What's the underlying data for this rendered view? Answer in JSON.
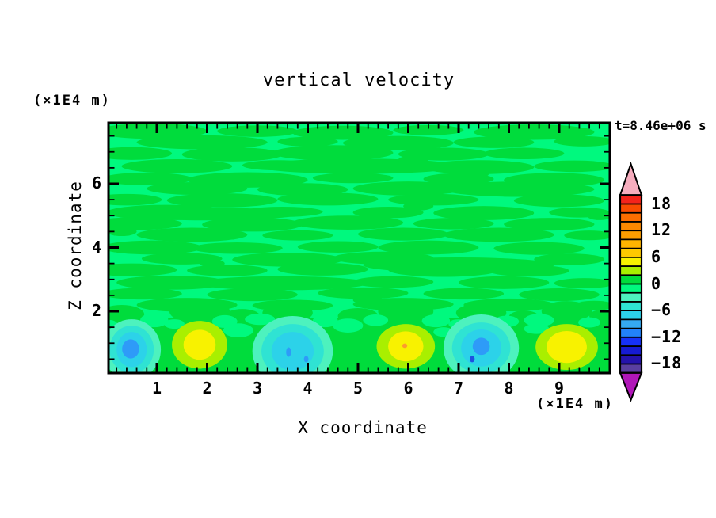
{
  "title": "vertical velocity",
  "timestamp": "t=8.46e+06 s",
  "axes": {
    "x": {
      "label": "X coordinate",
      "unit": "(×1E4 m)",
      "range": [
        0,
        10
      ],
      "major_ticks": [
        1,
        2,
        3,
        4,
        5,
        6,
        7,
        8,
        9
      ],
      "minor_step": 0.2
    },
    "z": {
      "label": "Z coordinate",
      "unit": "(×1E4 m)",
      "range": [
        0,
        7.9
      ],
      "major_ticks": [
        2,
        4,
        6
      ],
      "minor_step": 0.5
    }
  },
  "colorbar": {
    "labels": [
      "18",
      "12",
      "6",
      "0",
      "−6",
      "−12",
      "−18"
    ],
    "label_boundary_index": [
      1,
      4,
      7,
      10,
      13,
      16,
      19
    ],
    "top_value": 20,
    "segment_span": 2,
    "segments": [
      "#F4231B",
      "#F94B00",
      "#FB6E00",
      "#FC8800",
      "#FD9E00",
      "#FEB400",
      "#FEC900",
      "#F8F200",
      "#A9EF00",
      "#00DC3C",
      "#00F97E",
      "#4DF2BE",
      "#2FE3D3",
      "#2CD2E9",
      "#35A9F1",
      "#2282FA",
      "#1631F8",
      "#161BD2",
      "#2412AC",
      "#5A3FA0"
    ],
    "over_arrow_color": "#F6ADBE",
    "under_arrow_color": "#B017B8"
  },
  "chart_data": {
    "type": "heatmap",
    "title": "vertical velocity",
    "xlabel": "X coordinate (×1E4 m)",
    "ylabel": "Z coordinate (×1E4 m)",
    "x_range": [
      0,
      10
    ],
    "z_range": [
      0,
      7.9
    ],
    "time_annotation": "t=8.46e+06 s",
    "levels_min": -20,
    "levels_max": 20,
    "level_step": 2,
    "background_level_range": [
      -2,
      2
    ],
    "features": [
      {
        "kind": "downdraft",
        "x": 0.5,
        "z": 0.85,
        "approx_peak": -10
      },
      {
        "kind": "updraft",
        "x": 1.85,
        "z": 0.95,
        "approx_peak": 6
      },
      {
        "kind": "downdraft",
        "x": 3.7,
        "z": 0.7,
        "approx_peak": -10
      },
      {
        "kind": "updraft",
        "x": 5.95,
        "z": 0.9,
        "approx_peak": 12
      },
      {
        "kind": "downdraft",
        "x": 7.45,
        "z": 0.88,
        "approx_peak": -10
      },
      {
        "kind": "updraft",
        "x": 9.15,
        "z": 0.88,
        "approx_peak": 6
      }
    ],
    "palette": {
      "spring": "#00F97E",
      "green": "#00DC3C",
      "chartreuse": "#A9EF00",
      "yellow": "#F8F200",
      "orange": "#FC9C2E",
      "mint": "#4DF2BE",
      "turquoise": "#2FE3D3",
      "cyan": "#2CD2E9",
      "blue": "#2E9BF8",
      "deepblue": "#1E50E0"
    },
    "texture": {
      "band_top_z": 1.78,
      "streaks": [
        [
          0.9,
          7.65,
          1.1,
          0.24
        ],
        [
          3.0,
          7.65,
          0.8,
          0.18
        ],
        [
          4.7,
          7.6,
          1.0,
          0.22
        ],
        [
          6.4,
          7.68,
          0.7,
          0.16
        ],
        [
          8.5,
          7.62,
          1.2,
          0.24
        ],
        [
          1.9,
          7.3,
          1.3,
          0.22
        ],
        [
          4.0,
          7.32,
          0.6,
          0.15
        ],
        [
          5.8,
          7.28,
          1.1,
          0.22
        ],
        [
          7.7,
          7.3,
          0.8,
          0.18
        ],
        [
          9.5,
          7.33,
          0.6,
          0.16
        ],
        [
          0.5,
          6.95,
          0.8,
          0.2
        ],
        [
          2.5,
          6.92,
          1.0,
          0.22
        ],
        [
          4.5,
          6.97,
          1.2,
          0.24
        ],
        [
          6.7,
          6.93,
          0.9,
          0.2
        ],
        [
          8.3,
          6.95,
          0.8,
          0.18
        ],
        [
          1.4,
          6.55,
          1.1,
          0.22
        ],
        [
          3.4,
          6.58,
          0.7,
          0.16
        ],
        [
          5.0,
          6.55,
          2.0,
          0.24
        ],
        [
          7.4,
          6.52,
          1.1,
          0.22
        ],
        [
          9.3,
          6.55,
          0.8,
          0.18
        ],
        [
          0.8,
          6.15,
          0.9,
          0.2
        ],
        [
          2.8,
          6.12,
          1.2,
          0.24
        ],
        [
          4.9,
          6.18,
          0.8,
          0.16
        ],
        [
          7.0,
          6.15,
          0.7,
          0.18
        ],
        [
          8.9,
          6.12,
          1.0,
          0.22
        ],
        [
          1.8,
          5.85,
          1.0,
          0.2
        ],
        [
          3.9,
          5.82,
          0.9,
          0.2
        ],
        [
          6.0,
          5.85,
          1.1,
          0.22
        ],
        [
          8.2,
          5.83,
          1.5,
          0.24
        ],
        [
          0.4,
          5.5,
          0.7,
          0.18
        ],
        [
          2.3,
          5.48,
          1.1,
          0.22
        ],
        [
          4.4,
          5.52,
          1.0,
          0.2
        ],
        [
          6.5,
          5.5,
          0.9,
          0.18
        ],
        [
          9.0,
          5.47,
          0.9,
          0.2
        ],
        [
          1.2,
          5.1,
          1.2,
          0.24
        ],
        [
          2.0,
          5.05,
          1.8,
          0.2
        ],
        [
          3.5,
          5.12,
          0.8,
          0.16
        ],
        [
          5.6,
          5.1,
          0.7,
          0.18
        ],
        [
          7.5,
          5.08,
          1.0,
          0.22
        ],
        [
          9.4,
          5.1,
          0.6,
          0.16
        ],
        [
          0.6,
          4.75,
          0.9,
          0.2
        ],
        [
          2.9,
          4.72,
          1.0,
          0.22
        ],
        [
          4.8,
          4.78,
          1.1,
          0.22
        ],
        [
          6.9,
          4.75,
          0.8,
          0.18
        ],
        [
          8.8,
          4.73,
          0.9,
          0.2
        ],
        [
          1.7,
          4.4,
          1.1,
          0.22
        ],
        [
          3.8,
          4.38,
          0.7,
          0.16
        ],
        [
          5.9,
          4.42,
          0.9,
          0.2
        ],
        [
          7.8,
          4.4,
          1.1,
          0.22
        ],
        [
          9.6,
          4.38,
          0.5,
          0.15
        ],
        [
          0.9,
          4.0,
          1.0,
          0.22
        ],
        [
          2.6,
          3.98,
          0.9,
          0.18
        ],
        [
          4.6,
          4.02,
          0.8,
          0.18
        ],
        [
          6.4,
          4.0,
          1.0,
          0.22
        ],
        [
          8.6,
          3.97,
          0.9,
          0.2
        ],
        [
          1.5,
          3.65,
          0.8,
          0.18
        ],
        [
          3.6,
          3.62,
          1.1,
          0.22
        ],
        [
          5.5,
          3.67,
          1.0,
          0.2
        ],
        [
          7.0,
          3.45,
          1.9,
          0.24
        ],
        [
          9.2,
          3.63,
          0.7,
          0.18
        ],
        [
          0.5,
          3.3,
          0.9,
          0.2
        ],
        [
          2.4,
          3.28,
          0.8,
          0.18
        ],
        [
          4.3,
          3.32,
          0.9,
          0.2
        ],
        [
          6.7,
          3.3,
          1.1,
          0.22
        ],
        [
          8.4,
          3.27,
          0.8,
          0.18
        ],
        [
          1.3,
          2.9,
          1.1,
          0.22
        ],
        [
          3.5,
          2.88,
          1.7,
          0.22
        ],
        [
          5.7,
          2.92,
          0.8,
          0.18
        ],
        [
          7.9,
          2.9,
          0.9,
          0.2
        ],
        [
          9.5,
          2.88,
          0.6,
          0.16
        ],
        [
          0.7,
          2.55,
          0.8,
          0.18
        ],
        [
          2.9,
          2.52,
          0.9,
          0.2
        ],
        [
          5.1,
          2.57,
          0.9,
          0.18
        ],
        [
          7.1,
          2.55,
          0.8,
          0.18
        ],
        [
          9.0,
          2.52,
          0.8,
          0.2
        ],
        [
          1.6,
          2.2,
          1.0,
          0.22
        ],
        [
          3.7,
          2.18,
          0.8,
          0.18
        ],
        [
          5.9,
          2.22,
          1.0,
          0.2
        ],
        [
          8.0,
          2.2,
          0.9,
          0.2
        ],
        [
          9.7,
          2.18,
          0.4,
          0.15
        ],
        [
          4.15,
          7.0,
          0.3,
          0.13
        ],
        [
          6.2,
          5.3,
          0.3,
          0.14
        ],
        [
          2.1,
          3.5,
          0.25,
          0.12
        ],
        [
          7.3,
          6.3,
          0.3,
          0.13
        ],
        [
          5.2,
          2.35,
          0.3,
          0.13
        ],
        [
          0.3,
          4.5,
          0.3,
          0.14
        ],
        [
          9.8,
          5.0,
          0.25,
          0.14
        ],
        [
          6.1,
          6.75,
          0.3,
          0.13
        ]
      ],
      "band_bumps": [
        [
          0.3,
          1.9,
          0.45,
          0.3
        ],
        [
          1.85,
          2.0,
          0.6,
          0.38
        ],
        [
          2.7,
          1.85,
          0.35,
          0.22
        ],
        [
          3.6,
          1.95,
          0.5,
          0.3
        ],
        [
          5.0,
          1.85,
          0.4,
          0.25
        ],
        [
          5.95,
          2.0,
          0.55,
          0.35
        ],
        [
          7.45,
          1.95,
          0.5,
          0.3
        ],
        [
          8.3,
          1.82,
          0.3,
          0.2
        ],
        [
          9.15,
          2.0,
          0.5,
          0.32
        ],
        [
          9.85,
          1.85,
          0.25,
          0.2
        ]
      ],
      "band_notches": [
        [
          0.95,
          1.72,
          0.28,
          0.22
        ],
        [
          1.35,
          1.6,
          0.2,
          0.15
        ],
        [
          2.35,
          1.68,
          0.25,
          0.2
        ],
        [
          3.05,
          1.75,
          0.3,
          0.18
        ],
        [
          4.35,
          1.7,
          0.25,
          0.2
        ],
        [
          4.8,
          1.55,
          0.3,
          0.22
        ],
        [
          5.35,
          1.72,
          0.25,
          0.18
        ],
        [
          6.55,
          1.7,
          0.28,
          0.2
        ],
        [
          7.0,
          1.6,
          0.2,
          0.15
        ],
        [
          7.95,
          1.68,
          0.25,
          0.18
        ],
        [
          8.6,
          1.72,
          0.3,
          0.2
        ],
        [
          9.6,
          1.65,
          0.22,
          0.16
        ],
        [
          0.05,
          1.55,
          0.18,
          0.18
        ],
        [
          2.62,
          1.4,
          0.3,
          0.22
        ],
        [
          6.7,
          1.35,
          0.2,
          0.15
        ],
        [
          8.55,
          1.45,
          0.25,
          0.16
        ]
      ],
      "downdraft_shapes": [
        {
          "cx": 0.5,
          "cz": 0.8,
          "rings": [
            [
              0.58,
              0.95,
              "mint"
            ],
            [
              0.44,
              0.75,
              "turquoise"
            ],
            [
              0.3,
              0.55,
              "cyan"
            ]
          ],
          "core": [
            0.48,
            0.82,
            0.17,
            0.3,
            "blue"
          ],
          "specks": []
        },
        {
          "cx": 3.7,
          "cz": 0.75,
          "rings": [
            [
              0.8,
              1.1,
              "mint"
            ],
            [
              0.62,
              0.85,
              "turquoise"
            ],
            [
              0.42,
              0.6,
              "cyan"
            ]
          ],
          "core": null,
          "specks": [
            [
              3.62,
              0.72,
              0.05,
              0.15,
              "blue"
            ],
            [
              3.97,
              0.5,
              0.045,
              0.1,
              "blue"
            ]
          ]
        },
        {
          "cx": 7.45,
          "cz": 0.85,
          "rings": [
            [
              0.75,
              1.05,
              "mint"
            ],
            [
              0.58,
              0.8,
              "turquoise"
            ],
            [
              0.4,
              0.58,
              "cyan"
            ]
          ],
          "core": [
            7.45,
            0.9,
            0.17,
            0.27,
            "blue"
          ],
          "specks": [
            [
              7.27,
              0.5,
              0.05,
              0.1,
              "deepblue"
            ]
          ]
        }
      ],
      "updraft_shapes": [
        {
          "cx": 1.85,
          "cz": 0.95,
          "rings": [
            [
              0.55,
              0.75,
              "chartreuse"
            ],
            [
              0.32,
              0.47,
              "yellow"
            ]
          ],
          "core": null
        },
        {
          "cx": 5.95,
          "cz": 0.9,
          "rings": [
            [
              0.58,
              0.7,
              "chartreuse"
            ],
            [
              0.35,
              0.47,
              "yellow"
            ]
          ],
          "core": [
            5.93,
            0.92,
            0.05,
            0.07,
            "orange"
          ]
        },
        {
          "cx": 9.15,
          "cz": 0.88,
          "rings": [
            [
              0.62,
              0.72,
              "chartreuse"
            ],
            [
              0.4,
              0.5,
              "yellow"
            ]
          ],
          "core": null
        }
      ]
    }
  }
}
